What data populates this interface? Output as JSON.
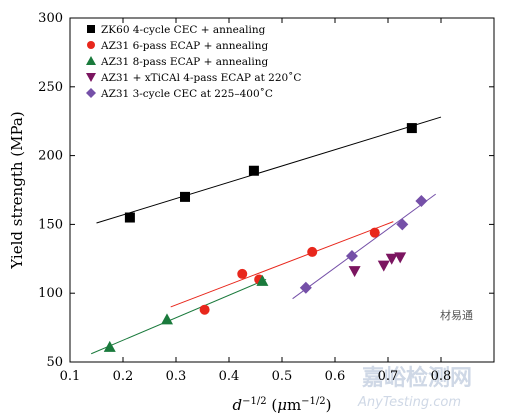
{
  "chart_data": {
    "type": "scatter",
    "xlabel_base": "d",
    "xlabel_sup": "−1/2",
    "xlabel_unit_open": " (",
    "xlabel_unit_mu": "μ",
    "xlabel_unit_m": "m",
    "xlabel_unit_sup": "−1/2",
    "xlabel_unit_close": ")",
    "ylabel": "Yield strength (MPa)",
    "xlim": [
      0.1,
      0.9
    ],
    "ylim": [
      50,
      300
    ],
    "xticks": [
      "0.1",
      "0.2",
      "0.3",
      "0.4",
      "0.5",
      "0.6",
      "0.7",
      "0.8"
    ],
    "yticks": [
      "50",
      "100",
      "150",
      "200",
      "250",
      "300"
    ],
    "legend_position": "top-left",
    "grid": false,
    "series": [
      {
        "name": "ZK60 4-cycle CEC + annealing",
        "marker": "square",
        "color": "#000000",
        "points": [
          [
            0.213,
            155
          ],
          [
            0.317,
            170
          ],
          [
            0.447,
            189
          ],
          [
            0.745,
            220
          ]
        ],
        "fit": [
          [
            0.15,
            151
          ],
          [
            0.8,
            228
          ]
        ]
      },
      {
        "name": "AZ31 6-pass ECAP + annealing",
        "marker": "circle",
        "color": "#e8271c",
        "points": [
          [
            0.354,
            88
          ],
          [
            0.425,
            114
          ],
          [
            0.457,
            110
          ],
          [
            0.557,
            130
          ],
          [
            0.675,
            144
          ]
        ],
        "fit": [
          [
            0.29,
            90
          ],
          [
            0.71,
            152
          ]
        ]
      },
      {
        "name": "AZ31 8-pass ECAP + annealing",
        "marker": "triangle-up",
        "color": "#1a7a3c",
        "points": [
          [
            0.175,
            61
          ],
          [
            0.283,
            81
          ],
          [
            0.463,
            109
          ]
        ],
        "fit": [
          [
            0.14,
            56
          ],
          [
            0.47,
            110
          ]
        ]
      },
      {
        "name": "AZ31 + xTiCAl 4-pass ECAP at 220˚C",
        "marker": "triangle-down",
        "color": "#7b1560",
        "points": [
          [
            0.637,
            116
          ],
          [
            0.692,
            120
          ],
          [
            0.707,
            125
          ],
          [
            0.723,
            126
          ]
        ],
        "fit": null
      },
      {
        "name": "AZ31 3-cycle CEC at 225–400˚C",
        "marker": "diamond",
        "color": "#7550a8",
        "points": [
          [
            0.545,
            104
          ],
          [
            0.632,
            127
          ],
          [
            0.727,
            150
          ],
          [
            0.763,
            167
          ]
        ],
        "fit": [
          [
            0.52,
            96
          ],
          [
            0.79,
            172
          ]
        ]
      }
    ]
  },
  "watermark": {
    "brand_cn": "嘉峪检测网",
    "brand_en": "AnyTesting.com",
    "badge": "材易通"
  }
}
